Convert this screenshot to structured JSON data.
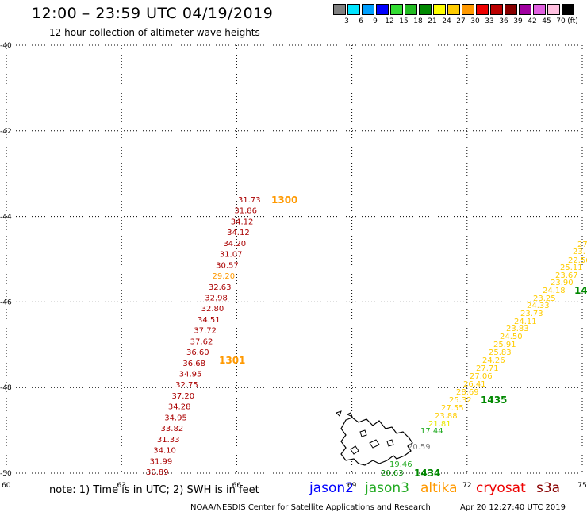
{
  "header": {
    "title": "12:00 – 23:59 UTC 04/19/2019",
    "subtitle": "12 hour collection of altimeter wave heights"
  },
  "legend": {
    "unit": "(ft)",
    "bins": [
      {
        "label": "3",
        "color": "#808080"
      },
      {
        "label": "6",
        "color": "#00e5ff"
      },
      {
        "label": "9",
        "color": "#00a0ff"
      },
      {
        "label": "12",
        "color": "#0000ff"
      },
      {
        "label": "15",
        "color": "#33dd33"
      },
      {
        "label": "18",
        "color": "#22bb22"
      },
      {
        "label": "21",
        "color": "#008800"
      },
      {
        "label": "24",
        "color": "#ffff00"
      },
      {
        "label": "27",
        "color": "#ffcc00"
      },
      {
        "label": "30",
        "color": "#ff9900"
      },
      {
        "label": "33",
        "color": "#ee0000"
      },
      {
        "label": "36",
        "color": "#bb0000"
      },
      {
        "label": "39",
        "color": "#880000"
      },
      {
        "label": "42",
        "color": "#a000a0"
      },
      {
        "label": "45",
        "color": "#e060e0"
      },
      {
        "label": "70",
        "color": "#ffc0e0"
      },
      {
        "label": "",
        "color": "#000000"
      }
    ]
  },
  "map": {
    "lon_range": [
      60,
      75
    ],
    "lat_range": [
      -50,
      -40
    ],
    "lat_ticks": [
      "-40",
      "-42",
      "-44",
      "-46",
      "-48",
      "-50"
    ],
    "lon_ticks": [
      "60",
      "63",
      "66",
      "69",
      "72",
      "75"
    ],
    "track_1": {
      "color": "#aa0000",
      "labels": [
        "31.73",
        "31.86",
        "34.12",
        "34.12",
        "34.20",
        "31.07",
        "30.57",
        "29.20",
        "32.63",
        "32.98",
        "32.80",
        "34.51",
        "37.72",
        "37.62",
        "36.60",
        "36.68",
        "34.95",
        "32.75",
        "37.20",
        "34.28",
        "34.95",
        "33.82",
        "31.33",
        "34.10",
        "31.99",
        "30.89"
      ],
      "colors": [
        "#aa0000",
        "#aa0000",
        "#aa0000",
        "#aa0000",
        "#aa0000",
        "#aa0000",
        "#aa0000",
        "#ff9900",
        "#aa0000",
        "#aa0000",
        "#aa0000",
        "#aa0000",
        "#aa0000",
        "#aa0000",
        "#aa0000",
        "#aa0000",
        "#aa0000",
        "#aa0000",
        "#aa0000",
        "#aa0000",
        "#aa0000",
        "#aa0000",
        "#aa0000",
        "#aa0000",
        "#aa0000",
        "#aa0000"
      ]
    },
    "track_2": {
      "labels": [
        "20.63",
        "19.46",
        "20.59",
        "17.44",
        "21.81",
        "23.88",
        "27.55",
        "25.32",
        "28.69",
        "26.41",
        "27.06",
        "27.71",
        "24.26",
        "25.83",
        "25.91",
        "24.50",
        "23.83",
        "24.11",
        "23.73",
        "24.33",
        "23.25",
        "24.18",
        "23.90",
        "23.67",
        "25.11",
        "22.56",
        "23.",
        "27"
      ],
      "colors": [
        "#008800",
        "#22aa22",
        "#808080",
        "#22aa22",
        "#e8e800",
        "#ffcc00",
        "#ffcc00",
        "#ffcc00",
        "#ffcc00",
        "#ffcc00",
        "#ffcc00",
        "#ffcc00",
        "#ffcc00",
        "#ffcc00",
        "#ffcc00",
        "#ffcc00",
        "#ffcc00",
        "#ffcc00",
        "#ffcc00",
        "#ffcc00",
        "#ffcc00",
        "#ffcc00",
        "#ffcc00",
        "#ffcc00",
        "#ffcc00",
        "#ffcc00",
        "#ffcc00",
        "#ffcc00"
      ]
    },
    "time_labels": [
      {
        "text": "1300",
        "color": "#ff9900"
      },
      {
        "text": "1301",
        "color": "#ff9900"
      },
      {
        "text": "1435",
        "color": "#008800"
      },
      {
        "text": "1434",
        "color": "#008800"
      },
      {
        "text": "14",
        "color": "#008800"
      }
    ]
  },
  "footer": {
    "note": "note: 1) Time is in UTC; 2) SWH is in feet",
    "satellites": [
      {
        "name": "jason2",
        "color": "#0000ff"
      },
      {
        "name": "jason3",
        "color": "#22aa22"
      },
      {
        "name": "altika",
        "color": "#ff9900"
      },
      {
        "name": "cryosat",
        "color": "#ee0000"
      },
      {
        "name": "s3a",
        "color": "#880000"
      }
    ],
    "credit": "NOAA/NESDIS Center for Satellite Applications and Research",
    "timestamp": "Apr 20 12:27:40 UTC 2019"
  }
}
